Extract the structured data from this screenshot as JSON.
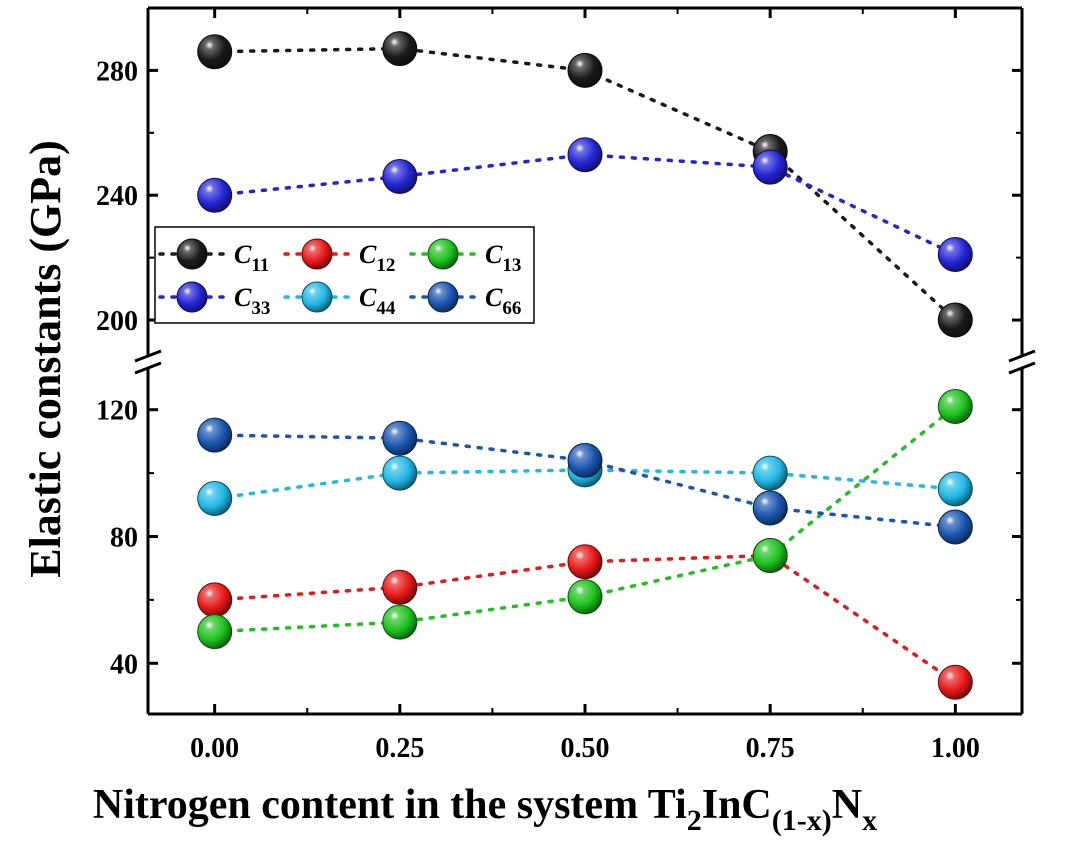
{
  "chart_data": {
    "type": "scatter",
    "connector": "dotted-line",
    "ylabel": "Elastic constants (GPa)",
    "xlabel": {
      "parts": [
        {
          "text": "Nitrogen content in the system Ti"
        },
        {
          "text": "2",
          "sub": true
        },
        {
          "text": "InC"
        },
        {
          "text": "(1-x)",
          "sub": true
        },
        {
          "text": "N"
        },
        {
          "text": "x",
          "sub": true
        }
      ]
    },
    "x": [
      0.0,
      0.25,
      0.5,
      0.75,
      1.0
    ],
    "x_ticks": [
      "0.00",
      "0.25",
      "0.50",
      "0.75",
      "1.00"
    ],
    "xlim": [
      -0.09,
      1.09
    ],
    "y_axis_break": true,
    "y_segments": [
      {
        "name": "upper",
        "ylim": [
          192,
          300
        ],
        "ticks": [
          200,
          240,
          280
        ]
      },
      {
        "name": "lower",
        "ylim": [
          24,
          130
        ],
        "ticks": [
          40,
          80,
          120
        ]
      }
    ],
    "legend": {
      "position": "top-left",
      "columns": 3
    },
    "series": [
      {
        "label": "C",
        "sub": "11",
        "color": "#1a1a1a",
        "segment": "upper",
        "values": [
          286,
          287,
          280,
          254,
          200
        ]
      },
      {
        "label": "C",
        "sub": "12",
        "color": "#e81818",
        "segment": "lower",
        "values": [
          60,
          64,
          72,
          74,
          34
        ]
      },
      {
        "label": "C",
        "sub": "13",
        "color": "#1ec21e",
        "segment": "lower",
        "values": [
          50,
          53,
          61,
          74,
          121
        ]
      },
      {
        "label": "C",
        "sub": "33",
        "color": "#2424d6",
        "segment": "upper",
        "values": [
          240,
          246,
          253,
          249,
          221
        ]
      },
      {
        "label": "C",
        "sub": "44",
        "color": "#20b8e6",
        "segment": "lower",
        "values": [
          92,
          100,
          101,
          100,
          95
        ]
      },
      {
        "label": "C",
        "sub": "66",
        "color": "#1a56b0",
        "segment": "lower",
        "values": [
          112,
          111,
          104,
          89,
          83
        ]
      }
    ]
  }
}
